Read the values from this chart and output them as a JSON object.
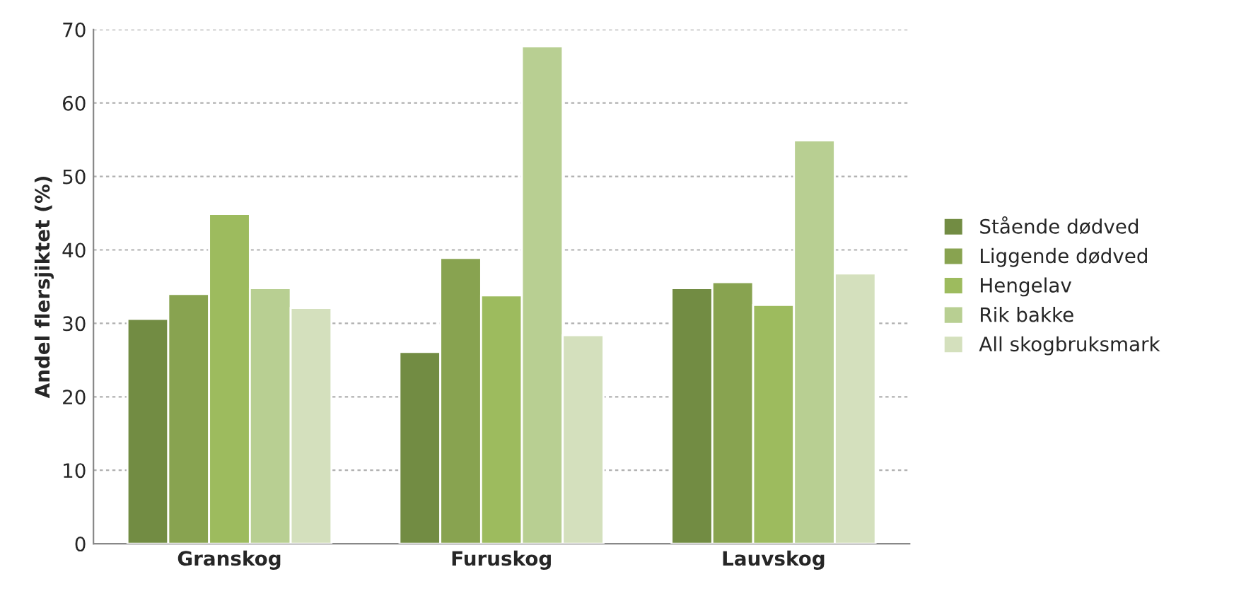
{
  "chart_data": {
    "type": "bar",
    "ylabel": "Andel flersjiktet (%)",
    "categories": [
      "Granskog",
      "Furuskog",
      "Lauvskog"
    ],
    "series": [
      {
        "name": "Stående dødved",
        "color": "#728c43",
        "values": [
          30.6,
          26.1,
          34.8
        ]
      },
      {
        "name": "Liggende dødved",
        "color": "#88a350",
        "values": [
          34.0,
          38.9,
          35.6
        ]
      },
      {
        "name": "Hengelav",
        "color": "#9dbb5e",
        "values": [
          44.9,
          33.8,
          32.5
        ]
      },
      {
        "name": "Rik bakke",
        "color": "#b8cf92",
        "values": [
          34.8,
          67.7,
          54.9
        ]
      },
      {
        "name": "All skogbruksmark",
        "color": "#d4e0bd",
        "values": [
          32.1,
          28.4,
          36.8
        ]
      }
    ],
    "ylim": [
      0,
      70
    ],
    "yticks": [
      0,
      10,
      20,
      30,
      40,
      50,
      60,
      70
    ],
    "grid": "y",
    "legend": "right"
  }
}
